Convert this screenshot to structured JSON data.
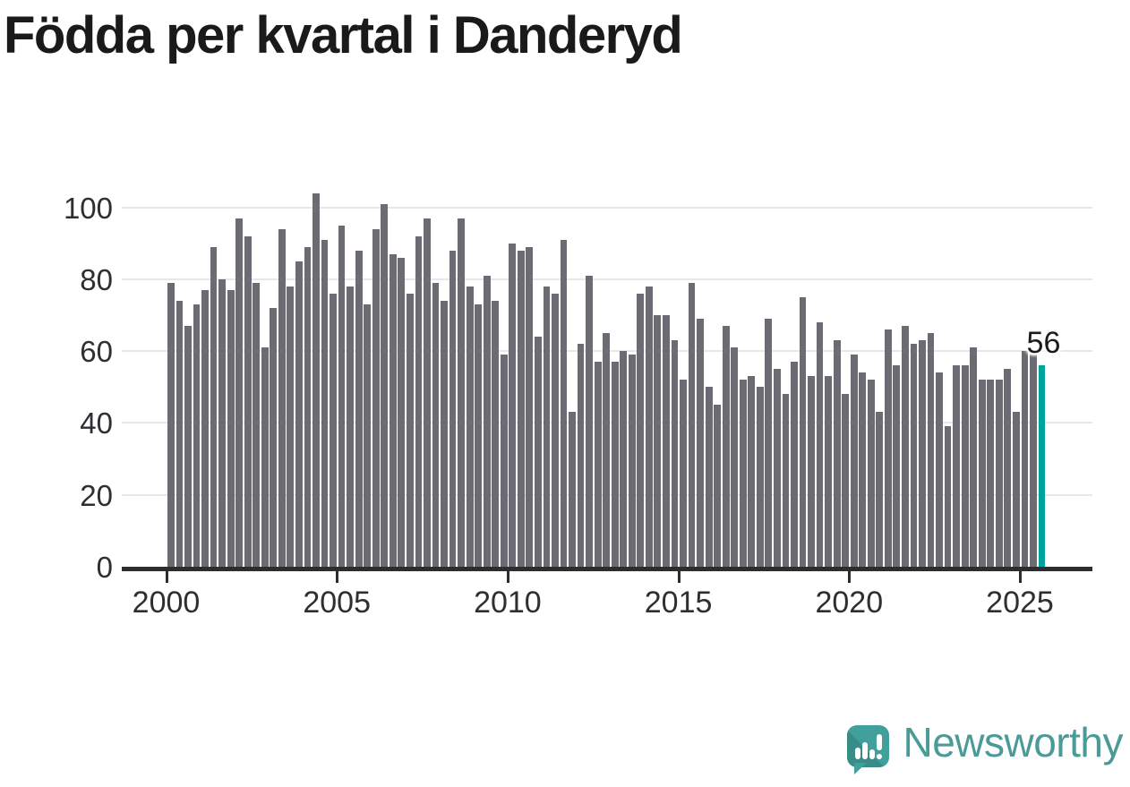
{
  "title": "Födda per kvartal i Danderyd",
  "annotation": {
    "label": "56"
  },
  "logo": {
    "text": "Newsworthy",
    "icon": "newsworthy-speech-bubble-bar-chart-icon"
  },
  "colors": {
    "background": "#ffffff",
    "bar": "#6c6b73",
    "highlight": "#00a39b",
    "gridline": "#e7e7e7",
    "axis": "#2d2d2d",
    "tick_text": "#2e2e33",
    "title_text": "#1a1a1a",
    "logo_teal": "#4a9b98"
  },
  "chart_data": {
    "type": "bar",
    "title": "Födda per kvartal i Danderyd",
    "xlabel": "",
    "ylabel": "",
    "ylim": [
      0,
      112
    ],
    "grid": "horizontal",
    "legend": "none",
    "y_ticks": [
      0,
      20,
      40,
      60,
      80,
      100
    ],
    "x_ticks": [
      "2000",
      "2005",
      "2010",
      "2015",
      "2020",
      "2025"
    ],
    "periods": {
      "start": "2000 Q1",
      "end": "2025 Q3",
      "freq": "quarterly"
    },
    "highlight_last_value": 56,
    "values": [
      79,
      74,
      67,
      73,
      77,
      89,
      80,
      77,
      97,
      92,
      79,
      61,
      72,
      94,
      78,
      85,
      89,
      104,
      91,
      76,
      95,
      78,
      88,
      73,
      94,
      101,
      87,
      86,
      76,
      92,
      97,
      79,
      74,
      88,
      97,
      78,
      73,
      81,
      74,
      59,
      90,
      88,
      89,
      64,
      78,
      76,
      91,
      43,
      62,
      81,
      57,
      65,
      57,
      60,
      59,
      76,
      78,
      70,
      70,
      63,
      52,
      79,
      69,
      50,
      45,
      67,
      61,
      52,
      53,
      50,
      69,
      55,
      48,
      57,
      75,
      53,
      68,
      53,
      63,
      48,
      59,
      54,
      52,
      43,
      66,
      56,
      67,
      62,
      63,
      65,
      54,
      39,
      56,
      56,
      61,
      52,
      52,
      52,
      55,
      43,
      60,
      59,
      56
    ]
  }
}
